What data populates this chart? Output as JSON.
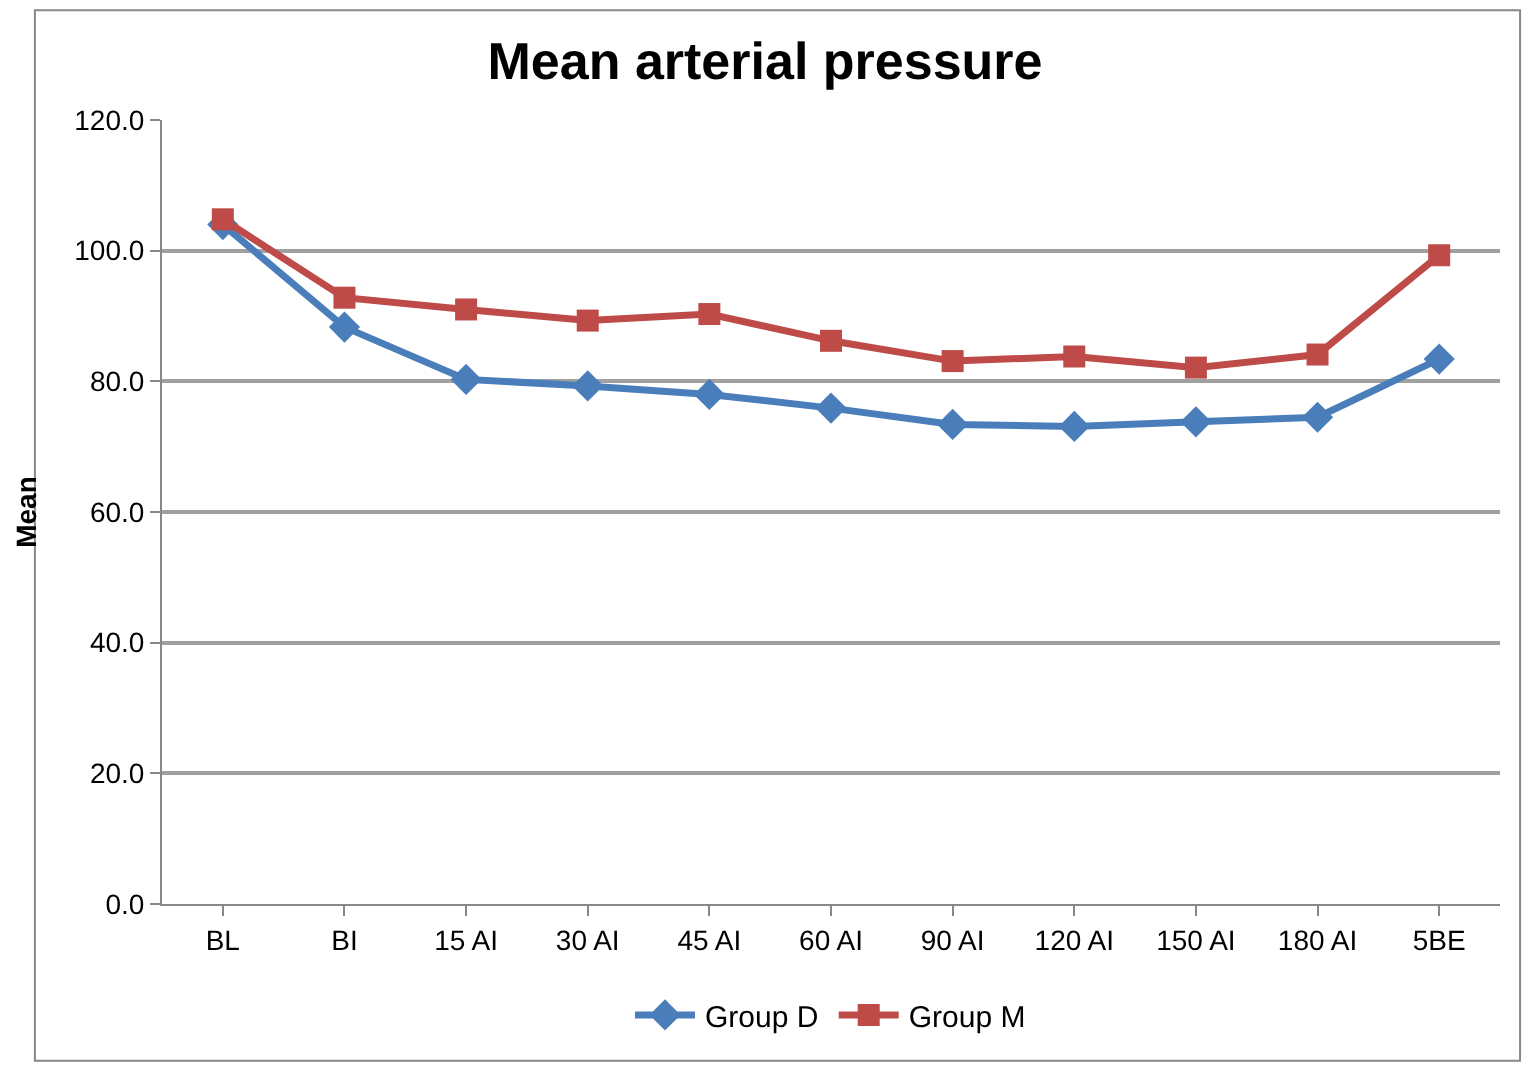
{
  "chart_data": {
    "type": "line",
    "title": "Mean arterial pressure",
    "ylabel": "Mean",
    "categories": [
      "BL",
      "BI",
      "15 AI",
      "30 AI",
      "45 AI",
      "60 AI",
      "90 AI",
      "120 AI",
      "150 AI",
      "180 AI",
      "5BE"
    ],
    "series": [
      {
        "name": "Group D",
        "color": "#4a7ebb",
        "marker": "diamond",
        "values": [
          104,
          88.3,
          80.3,
          79.3,
          78,
          75.9,
          73.4,
          73.1,
          73.8,
          74.5,
          83.4
        ]
      },
      {
        "name": "Group M",
        "color": "#be4b48",
        "marker": "square",
        "values": [
          104.8,
          92.8,
          91,
          89.3,
          90.3,
          86.2,
          83.1,
          83.8,
          82.1,
          84.1,
          99.3
        ]
      }
    ],
    "ylim": [
      0,
      120
    ],
    "yticks": [
      {
        "value": 0,
        "label": "0.0"
      },
      {
        "value": 20,
        "label": "20.0"
      },
      {
        "value": 40,
        "label": "40.0"
      },
      {
        "value": 60,
        "label": "60.0"
      },
      {
        "value": 80,
        "label": "80.0"
      },
      {
        "value": 100,
        "label": "100.0"
      },
      {
        "value": 120,
        "label": "120.0"
      }
    ],
    "grid": "y",
    "legend": "bottom",
    "line_style": "solid"
  }
}
